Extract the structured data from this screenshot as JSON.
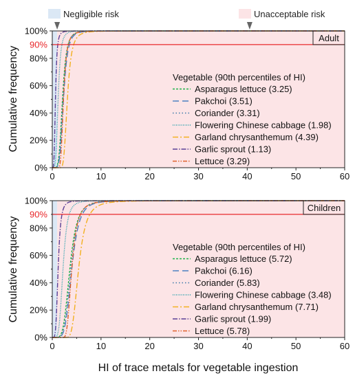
{
  "legend_top": {
    "negligible": {
      "label": "Negligible risk",
      "color": "#dbe8f5"
    },
    "unacceptable": {
      "label": "Unacceptable risk",
      "color": "#fce4e6"
    }
  },
  "shared": {
    "xlabel": "HI of trace metals for vegetable ingestion",
    "ylabel": "Cumulative frequency",
    "p90_label": "90%",
    "p90_color": "#e8282b"
  },
  "chart_data": [
    {
      "type": "line",
      "panel_label": "Adult",
      "legend_title": "Vegetable (90th percentiles of HI)",
      "xlim": [
        0,
        60
      ],
      "ylim": [
        0,
        100
      ],
      "xticks": [
        "0",
        "10",
        "20",
        "30",
        "40",
        "50",
        "60"
      ],
      "yticks": [
        "0%",
        "20%",
        "40%",
        "60%",
        "80%",
        "100%"
      ],
      "threshold_y": 90,
      "negligible_x": [
        0,
        1
      ],
      "unacceptable_x_from": 1,
      "series": [
        {
          "name": "Asparagus lettuce (3.25)",
          "color": "#1fb24a",
          "dash": "3 2",
          "p90": 3.25,
          "median": 2.1,
          "min": 0.3
        },
        {
          "name": "Pakchoi (3.51)",
          "color": "#4a7fc1",
          "dash": "9 5",
          "p90": 3.51,
          "median": 2.3,
          "min": 0.4
        },
        {
          "name": "Coriander (3.31)",
          "color": "#3a78a8",
          "dash": "1.5 3",
          "p90": 3.31,
          "median": 2.2,
          "min": 0.3
        },
        {
          "name": "Flowering Chinese cabbage (1.98)",
          "color": "#1f9eaa",
          "dash": "1 1.5",
          "p90": 1.98,
          "median": 1.2,
          "min": 0.1
        },
        {
          "name": "Garland chrysanthemum (4.39)",
          "color": "#f2b01e",
          "dash": "8 3 2 3",
          "p90": 4.39,
          "median": 3.1,
          "min": 1.6
        },
        {
          "name": "Garlic sprout (1.13)",
          "color": "#5a3f95",
          "dash": "7 2 1.5 2",
          "p90": 1.13,
          "median": 0.65,
          "min": 0.05
        },
        {
          "name": "Lettuce (3.29)",
          "color": "#e0602a",
          "dash": "6 2 1.5 2 1.5 2",
          "p90": 3.29,
          "median": 2.3,
          "min": 1.2
        }
      ]
    },
    {
      "type": "line",
      "panel_label": "Children",
      "legend_title": "Vegetable (90th percentiles of HI)",
      "xlim": [
        0,
        60
      ],
      "ylim": [
        0,
        100
      ],
      "xticks": [
        "0",
        "10",
        "20",
        "30",
        "40",
        "50",
        "60"
      ],
      "yticks": [
        "0%",
        "20%",
        "40%",
        "60%",
        "80%",
        "100%"
      ],
      "threshold_y": 90,
      "negligible_x": [
        0,
        1
      ],
      "unacceptable_x_from": 1,
      "series": [
        {
          "name": "Asparagus lettuce (5.72)",
          "color": "#1fb24a",
          "dash": "3 2",
          "p90": 5.72,
          "median": 3.6,
          "min": 0.5
        },
        {
          "name": "Pakchoi (6.16)",
          "color": "#4a7fc1",
          "dash": "9 5",
          "p90": 6.16,
          "median": 4.0,
          "min": 0.6
        },
        {
          "name": "Coriander (5.83)",
          "color": "#3a78a8",
          "dash": "1.5 3",
          "p90": 5.83,
          "median": 3.8,
          "min": 0.5
        },
        {
          "name": "Flowering Chinese cabbage (3.48)",
          "color": "#1f9eaa",
          "dash": "1 1.5",
          "p90": 3.48,
          "median": 2.2,
          "min": 0.3
        },
        {
          "name": "Garland chrysanthemum (7.71)",
          "color": "#f2b01e",
          "dash": "8 3 2 3",
          "p90": 7.71,
          "median": 5.4,
          "min": 2.8
        },
        {
          "name": "Garlic sprout (1.99)",
          "color": "#5a3f95",
          "dash": "7 2 1.5 2",
          "p90": 1.99,
          "median": 1.2,
          "min": 0.1
        },
        {
          "name": "Lettuce (5.78)",
          "color": "#e0602a",
          "dash": "6 2 1.5 2 1.5 2",
          "p90": 5.78,
          "median": 4.0,
          "min": 2.2
        }
      ]
    }
  ]
}
